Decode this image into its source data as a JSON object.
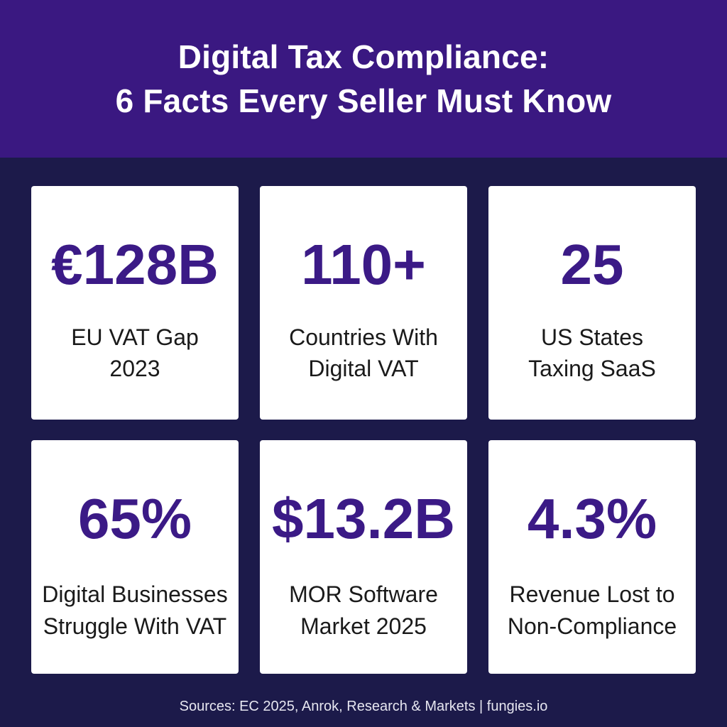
{
  "header": {
    "title_line1": "Digital Tax Compliance:",
    "title_line2": "6 Facts Every Seller Must Know"
  },
  "cards": [
    {
      "stat": "€128B",
      "label_line1": "EU VAT Gap",
      "label_line2": "2023"
    },
    {
      "stat": "110+",
      "label_line1": "Countries With",
      "label_line2": "Digital VAT"
    },
    {
      "stat": "25",
      "label_line1": "US States",
      "label_line2": "Taxing SaaS"
    },
    {
      "stat": "65%",
      "label_line1": "Digital Businesses",
      "label_line2": "Struggle With VAT"
    },
    {
      "stat": "$13.2B",
      "label_line1": "MOR Software",
      "label_line2": "Market 2025"
    },
    {
      "stat": "4.3%",
      "label_line1": "Revenue Lost to",
      "label_line2": "Non-Compliance"
    }
  ],
  "footer": {
    "sources": "Sources: EC 2025, Anrok, Research & Markets | fungies.io"
  },
  "colors": {
    "header_bg": "#3a1881",
    "page_bg": "#1c1a4a",
    "stat_color": "#3b1a86",
    "card_bg": "#ffffff"
  }
}
